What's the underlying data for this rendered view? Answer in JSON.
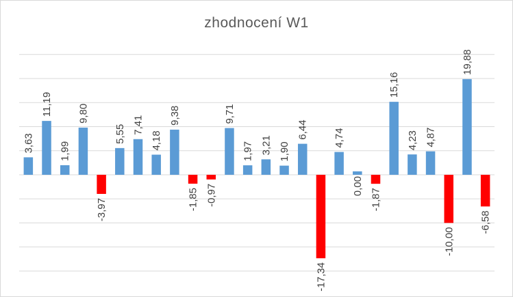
{
  "chart_data": {
    "type": "bar",
    "title": "zhodnocení  W1",
    "xlabel": "",
    "ylabel": "",
    "ylim": [
      -20,
      25
    ],
    "grid": true,
    "colors": {
      "positive": "#5b9bd5",
      "negative": "#ff0000",
      "grid": "#d9d9d9"
    },
    "values": [
      3.63,
      11.19,
      1.99,
      9.8,
      -3.97,
      5.55,
      7.41,
      4.18,
      9.38,
      -1.85,
      -0.97,
      9.71,
      1.97,
      3.21,
      1.9,
      6.44,
      -17.34,
      4.74,
      0.0,
      -1.87,
      15.16,
      4.23,
      4.87,
      -10.0,
      19.88,
      -6.58
    ],
    "data_labels": [
      "3,63",
      "11,19",
      "1,99",
      "9,80",
      "-3,97",
      "5,55",
      "7,41",
      "4,18",
      "9,38",
      "-1,85",
      "-0,97",
      "9,71",
      "1,97",
      "3,21",
      "1,90",
      "6,44",
      "-17,34",
      "4,74",
      "0,00",
      "-1,87",
      "15,16",
      "4,23",
      "4,87",
      "-10,00",
      "19,88",
      "-6,58"
    ]
  }
}
